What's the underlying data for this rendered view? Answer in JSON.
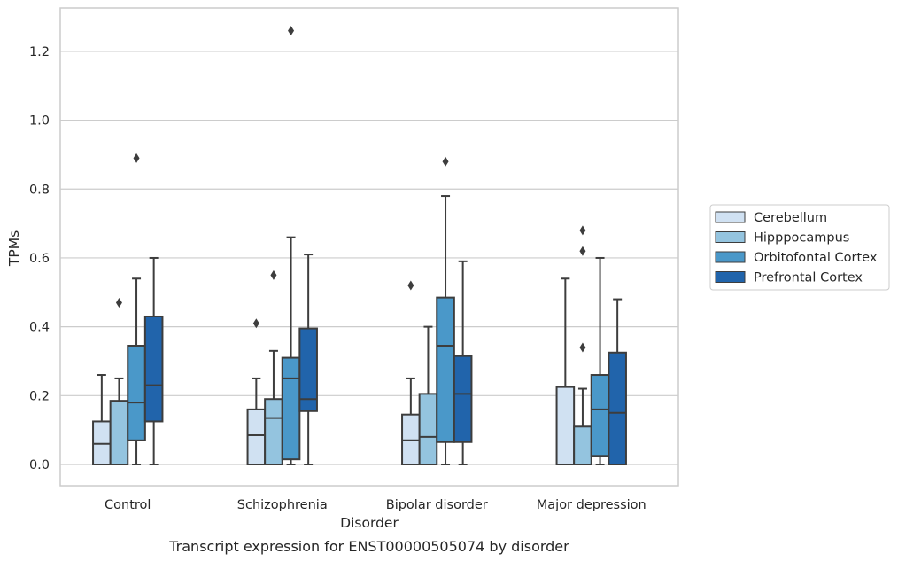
{
  "chart_data": {
    "type": "box",
    "xlabel": "Disorder",
    "ylabel": "TPMs",
    "caption": "Transcript expression for ENST00000505074 by disorder",
    "ylim": [
      -0.062,
      1.33
    ],
    "yticks": [
      "0.0",
      "0.2",
      "0.4",
      "0.6",
      "0.8",
      "1.0",
      "1.2"
    ],
    "grid": true,
    "legend_position": "right",
    "categories": [
      "Control",
      "Schizophrenia",
      "Bipolar disorder",
      "Major depression"
    ],
    "series": [
      {
        "name": "Cerebellum",
        "color": "#d0e1f2",
        "boxes": [
          {
            "whisker_low": 0,
            "q1": 0,
            "median": 0.06,
            "q3": 0.125,
            "whisker_high": 0.26,
            "outliers": []
          },
          {
            "whisker_low": 0,
            "q1": 0,
            "median": 0.085,
            "q3": 0.16,
            "whisker_high": 0.25,
            "outliers": [
              0.41
            ]
          },
          {
            "whisker_low": 0,
            "q1": 0,
            "median": 0.07,
            "q3": 0.145,
            "whisker_high": 0.25,
            "outliers": [
              0.52
            ]
          },
          {
            "whisker_low": 0,
            "q1": 0,
            "median": 0,
            "q3": 0.225,
            "whisker_high": 0.54,
            "outliers": []
          }
        ]
      },
      {
        "name": "Hipppocampus",
        "color": "#94c4df",
        "boxes": [
          {
            "whisker_low": 0,
            "q1": 0,
            "median": 0,
            "q3": 0.185,
            "whisker_high": 0.25,
            "outliers": [
              0.47
            ]
          },
          {
            "whisker_low": 0,
            "q1": 0,
            "median": 0.135,
            "q3": 0.19,
            "whisker_high": 0.33,
            "outliers": [
              0.55
            ]
          },
          {
            "whisker_low": 0,
            "q1": 0,
            "median": 0.08,
            "q3": 0.205,
            "whisker_high": 0.4,
            "outliers": []
          },
          {
            "whisker_low": 0,
            "q1": 0,
            "median": 0,
            "q3": 0.11,
            "whisker_high": 0.22,
            "outliers": [
              0.34,
              0.62,
              0.68
            ]
          }
        ]
      },
      {
        "name": "Orbitofontal Cortex",
        "color": "#4a98c9",
        "boxes": [
          {
            "whisker_low": 0,
            "q1": 0.07,
            "median": 0.18,
            "q3": 0.345,
            "whisker_high": 0.54,
            "outliers": [
              0.89
            ]
          },
          {
            "whisker_low": 0,
            "q1": 0.015,
            "median": 0.25,
            "q3": 0.31,
            "whisker_high": 0.66,
            "outliers": [
              1.26
            ]
          },
          {
            "whisker_low": 0,
            "q1": 0.065,
            "median": 0.345,
            "q3": 0.485,
            "whisker_high": 0.78,
            "outliers": [
              0.88
            ]
          },
          {
            "whisker_low": 0,
            "q1": 0.025,
            "median": 0.16,
            "q3": 0.26,
            "whisker_high": 0.6,
            "outliers": []
          }
        ]
      },
      {
        "name": "Prefrontal Cortex",
        "color": "#2164ab",
        "boxes": [
          {
            "whisker_low": 0,
            "q1": 0.125,
            "median": 0.23,
            "q3": 0.43,
            "whisker_high": 0.6,
            "outliers": []
          },
          {
            "whisker_low": 0,
            "q1": 0.155,
            "median": 0.19,
            "q3": 0.395,
            "whisker_high": 0.61,
            "outliers": []
          },
          {
            "whisker_low": 0,
            "q1": 0.065,
            "median": 0.205,
            "q3": 0.315,
            "whisker_high": 0.59,
            "outliers": []
          },
          {
            "whisker_low": 0,
            "q1": 0,
            "median": 0.15,
            "q3": 0.325,
            "whisker_high": 0.48,
            "outliers": []
          }
        ]
      }
    ]
  }
}
